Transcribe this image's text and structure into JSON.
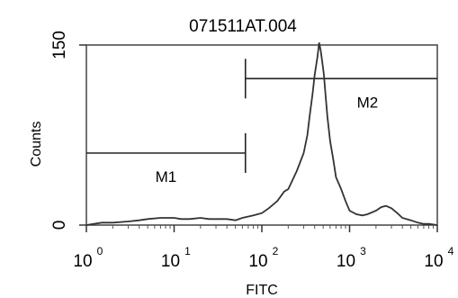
{
  "chart_data": {
    "type": "line",
    "title": "071511AT.004",
    "xlabel": "FITC",
    "ylabel": "Counts",
    "xscale": "log",
    "xlim": [
      1,
      10000
    ],
    "ylim": [
      0,
      150
    ],
    "grid": false,
    "x_ticks": [
      {
        "base": "10",
        "exp": "0"
      },
      {
        "base": "10",
        "exp": "1"
      },
      {
        "base": "10",
        "exp": "2"
      },
      {
        "base": "10",
        "exp": "3"
      },
      {
        "base": "10",
        "exp": "4"
      }
    ],
    "y_ticks": [
      "0",
      "150"
    ],
    "series": [
      {
        "x": [
          1,
          1.2,
          1.5,
          2,
          3,
          4,
          5,
          7,
          10,
          12,
          15,
          20,
          25,
          30,
          40,
          50,
          60,
          80,
          100,
          120,
          150,
          180,
          200,
          250,
          300,
          330,
          350,
          380,
          400,
          430,
          450,
          470,
          490,
          510,
          530,
          560,
          600,
          650,
          700,
          800,
          900,
          1000,
          1200,
          1400,
          1600,
          2000,
          2300,
          2600,
          3000,
          3500,
          4000,
          5000,
          6000,
          7000,
          8000,
          10000
        ],
        "y": [
          0,
          1,
          2,
          2,
          3,
          4,
          5,
          6,
          6,
          5,
          5,
          6,
          5,
          5,
          5,
          4,
          6,
          8,
          10,
          14,
          20,
          28,
          30,
          45,
          60,
          75,
          90,
          110,
          125,
          140,
          152,
          145,
          135,
          125,
          110,
          90,
          70,
          55,
          40,
          30,
          20,
          12,
          9,
          8,
          9,
          12,
          15,
          16,
          14,
          10,
          6,
          4,
          2,
          1,
          1,
          0
        ]
      }
    ],
    "markers": [
      {
        "label": "M1",
        "x_start": 1,
        "x_end": 65,
        "y": 60
      },
      {
        "label": "M2",
        "x_start": 65,
        "x_end": 10000,
        "y": 122
      }
    ]
  }
}
